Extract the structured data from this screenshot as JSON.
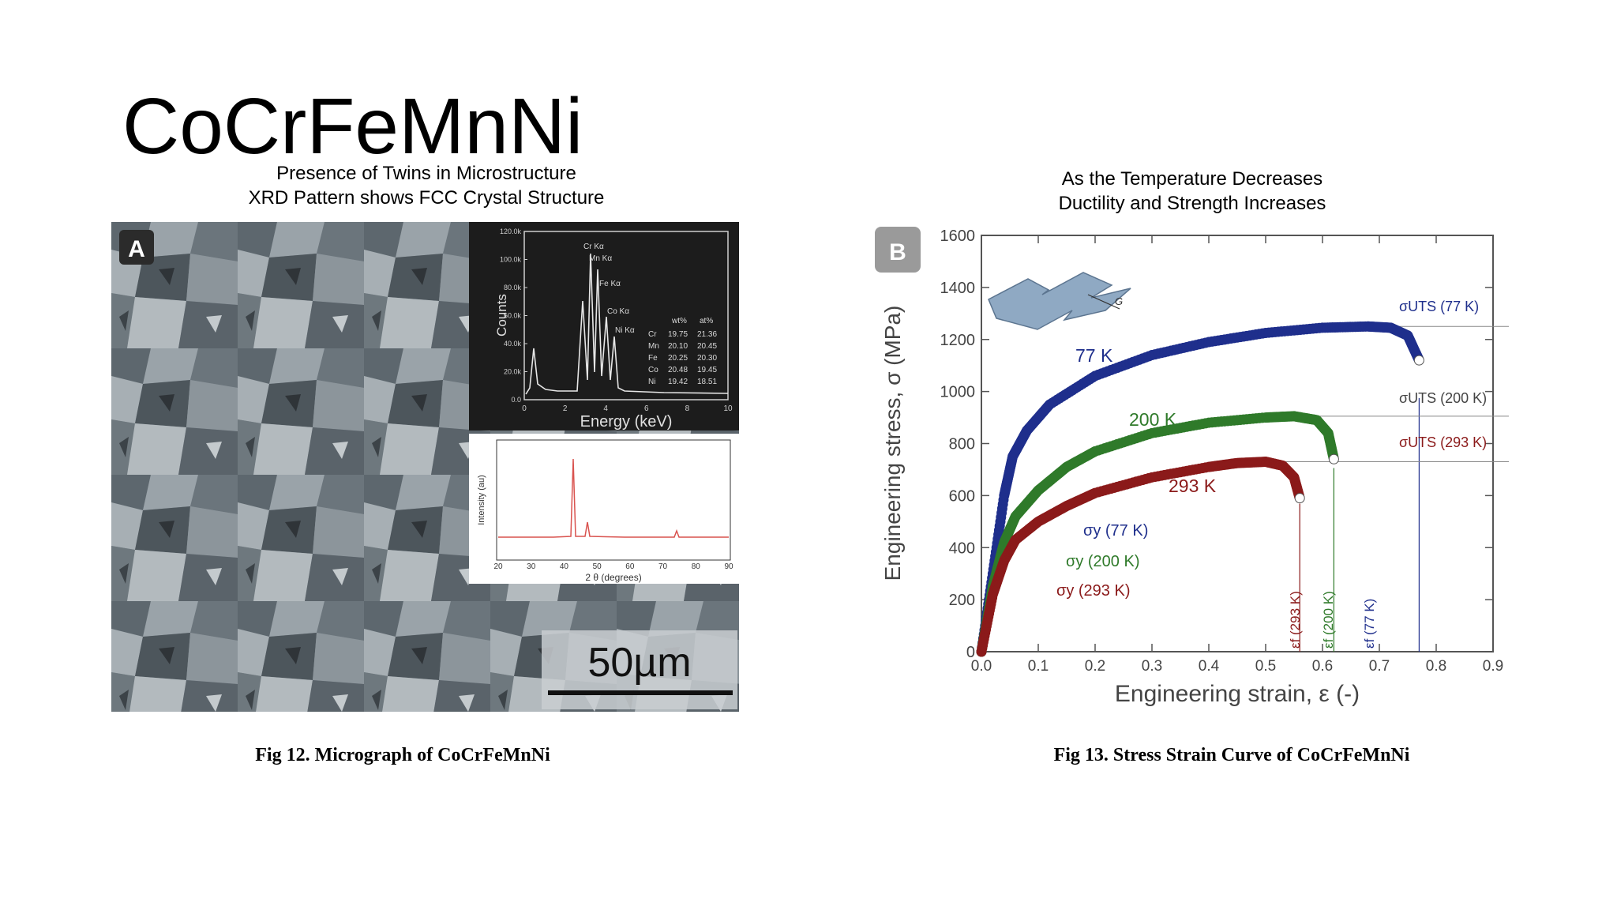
{
  "slide": {
    "title": "CoCrFeMnNi",
    "left_subtitle_line1": "Presence of Twins in Microstructure",
    "left_subtitle_line2": "XRD Pattern shows FCC Crystal Structure",
    "right_subtitle_line1": "As the Temperature Decreases",
    "right_subtitle_line2": "Ductility and Strength Increases",
    "left_caption": "Fig 12.  Micrograph of CoCrFeMnNi",
    "right_caption": "Fig 13. Stress Strain Curve of CoCrFeMnNi"
  },
  "micrograph": {
    "panel_label": "A",
    "scale_bar": "50µm",
    "edx": {
      "ylabel": "Counts",
      "xlabel": "Energy (keV)",
      "yticks": [
        "0.0",
        "20.0k",
        "40.0k",
        "60.0k",
        "80.0k",
        "100.0k",
        "120.0k"
      ],
      "xticks": [
        "0",
        "2",
        "4",
        "6",
        "8",
        "10"
      ],
      "peaks": [
        "Cr Kα",
        "Mn Kα",
        "Fe Kα",
        "Co Kα",
        "Ni Kα"
      ],
      "table_header": [
        "wt%",
        "at%"
      ],
      "table_rows": [
        [
          "Cr",
          "19.75",
          "21.36"
        ],
        [
          "Mn",
          "20.10",
          "20.45"
        ],
        [
          "Fe",
          "20.25",
          "20.30"
        ],
        [
          "Co",
          "20.48",
          "19.45"
        ],
        [
          "Ni",
          "19.42",
          "18.51"
        ]
      ]
    },
    "xrd": {
      "ylabel": "Intensity (au)",
      "xlabel": "2 θ (degrees)",
      "xticks": [
        "20",
        "30",
        "40",
        "50",
        "60",
        "70",
        "80",
        "90"
      ]
    }
  },
  "chart_data": {
    "type": "scatter",
    "panel_label": "B",
    "xlabel": "Engineering strain, ε (-)",
    "ylabel": "Engineering stress, σ (MPa)",
    "xlim": [
      0.0,
      0.9
    ],
    "ylim": [
      0,
      1600
    ],
    "xticks": [
      "0.0",
      "0.1",
      "0.2",
      "0.3",
      "0.4",
      "0.5",
      "0.6",
      "0.7",
      "0.8",
      "0.9"
    ],
    "yticks": [
      "0",
      "200",
      "400",
      "600",
      "800",
      "1000",
      "1200",
      "1400",
      "1600"
    ],
    "grid": false,
    "series": [
      {
        "name": "77 K",
        "color": "#1f2f8c",
        "points": [
          [
            0,
            0
          ],
          [
            0.02,
            300
          ],
          [
            0.04,
            600
          ],
          [
            0.055,
            750
          ],
          [
            0.08,
            850
          ],
          [
            0.12,
            950
          ],
          [
            0.2,
            1060
          ],
          [
            0.3,
            1140
          ],
          [
            0.4,
            1190
          ],
          [
            0.5,
            1225
          ],
          [
            0.6,
            1245
          ],
          [
            0.68,
            1250
          ],
          [
            0.72,
            1245
          ],
          [
            0.75,
            1215
          ],
          [
            0.77,
            1120
          ]
        ]
      },
      {
        "name": "200 K",
        "color": "#2f7a2a",
        "points": [
          [
            0,
            0
          ],
          [
            0.02,
            250
          ],
          [
            0.04,
            420
          ],
          [
            0.06,
            520
          ],
          [
            0.1,
            620
          ],
          [
            0.15,
            710
          ],
          [
            0.2,
            770
          ],
          [
            0.3,
            840
          ],
          [
            0.4,
            880
          ],
          [
            0.5,
            900
          ],
          [
            0.55,
            905
          ],
          [
            0.59,
            890
          ],
          [
            0.61,
            840
          ],
          [
            0.62,
            740
          ]
        ]
      },
      {
        "name": "293 K",
        "color": "#8b1a1a",
        "points": [
          [
            0,
            0
          ],
          [
            0.02,
            220
          ],
          [
            0.04,
            350
          ],
          [
            0.06,
            430
          ],
          [
            0.1,
            500
          ],
          [
            0.15,
            560
          ],
          [
            0.2,
            610
          ],
          [
            0.3,
            670
          ],
          [
            0.4,
            710
          ],
          [
            0.45,
            725
          ],
          [
            0.5,
            730
          ],
          [
            0.53,
            715
          ],
          [
            0.55,
            670
          ],
          [
            0.56,
            590
          ]
        ]
      }
    ],
    "annotations": [
      "77 K",
      "200 K",
      "293 K",
      "σUTS (77 K)",
      "σUTS (200 K)",
      "σUTS (293 K)",
      "σy (77 K)",
      "σy (200 K)",
      "σy (293 K)",
      "εf (293 K)",
      "εf (200 K)",
      "εf (77 K)",
      "G"
    ]
  }
}
